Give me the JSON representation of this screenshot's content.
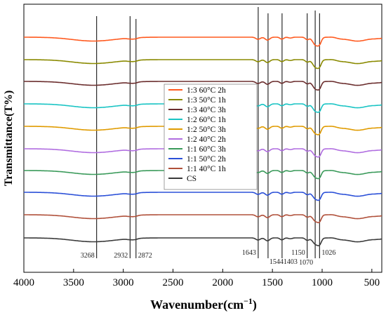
{
  "chart_data": {
    "type": "line",
    "xlabel_main": "Wavenumber",
    "xlabel_unit_open": "(cm",
    "xlabel_unit_sup": "−1",
    "xlabel_unit_close": ")",
    "ylabel": "Transmittance(T%)",
    "xlim": [
      4000,
      400
    ],
    "x_reversed": true,
    "x_ticks": [
      "4000",
      "3500",
      "3000",
      "2500",
      "2000",
      "1500",
      "1000",
      "500"
    ],
    "x_tick_values": [
      4000,
      3500,
      3000,
      2500,
      2000,
      1500,
      1000,
      500
    ],
    "y_ticks_shown": false,
    "grid": false,
    "legend_position": "center",
    "reference_lines": [
      {
        "x": 3268,
        "label": "3268"
      },
      {
        "x": 2932,
        "label": "2932"
      },
      {
        "x": 2872,
        "label": "2872"
      },
      {
        "x": 1643,
        "label": "1643"
      },
      {
        "x": 1544,
        "label": "1544"
      },
      {
        "x": 1403,
        "label": "1403"
      },
      {
        "x": 1150,
        "label": "1150"
      },
      {
        "x": 1070,
        "label": "1070"
      },
      {
        "x": 1026,
        "label": "1026"
      }
    ],
    "series": [
      {
        "name": "1:3 60°C 2h",
        "color": "#ff5a1f",
        "offset": 9
      },
      {
        "name": "1:3 50°C 1h",
        "color": "#8a8a00",
        "offset": 8
      },
      {
        "name": "1:3 40°C 3h",
        "color": "#6b2e2e",
        "offset": 7
      },
      {
        "name": "1:2 60°C 1h",
        "color": "#19c4c4",
        "offset": 6
      },
      {
        "name": "1:2 50°C 3h",
        "color": "#e09b00",
        "offset": 5
      },
      {
        "name": "1:2 40°C 2h",
        "color": "#b06de0",
        "offset": 4
      },
      {
        "name": "1:1 60°C 3h",
        "color": "#3a9a5a",
        "offset": 3
      },
      {
        "name": "1:1 50°C 2h",
        "color": "#2b50d8",
        "offset": 2
      },
      {
        "name": "1:1 40°C 1h",
        "color": "#b0503a",
        "offset": 1
      },
      {
        "name": "CS",
        "color": "#3a3a3a",
        "offset": 0
      }
    ]
  }
}
